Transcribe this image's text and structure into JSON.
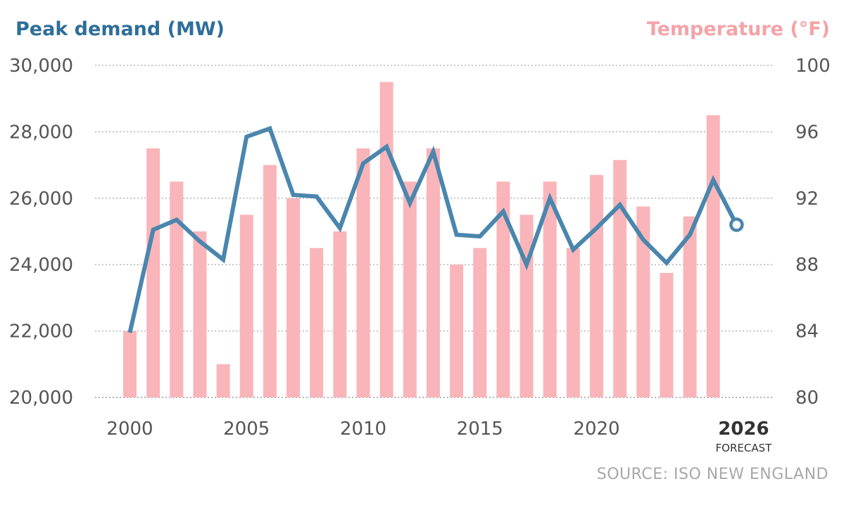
{
  "titles": {
    "left": "Peak demand (MW)",
    "right": "Temperature (°F)"
  },
  "source": "SOURCE: ISO NEW ENGLAND",
  "chart_data": {
    "type": "bar",
    "x": [
      2000,
      2001,
      2002,
      2003,
      2004,
      2005,
      2006,
      2007,
      2008,
      2009,
      2010,
      2011,
      2012,
      2013,
      2014,
      2015,
      2016,
      2017,
      2018,
      2019,
      2020,
      2021,
      2022,
      2023,
      2024,
      2025,
      2026
    ],
    "series": [
      {
        "name": "Temperature (°F)",
        "type": "bar",
        "axis": "right",
        "color": "#f9b5b9",
        "values": [
          84,
          95,
          93,
          90,
          82,
          91,
          94,
          92,
          89,
          90,
          95,
          99,
          93,
          95,
          88,
          89,
          93,
          91,
          93,
          89,
          93.4,
          94.3,
          91.5,
          87.5,
          90.9,
          97,
          null
        ]
      },
      {
        "name": "Peak demand (MW)",
        "type": "line",
        "axis": "left",
        "color": "#4a86ad",
        "values": [
          21950,
          25050,
          25350,
          24700,
          24150,
          27850,
          28100,
          26100,
          26050,
          25100,
          27050,
          27550,
          25850,
          27400,
          24900,
          24850,
          25600,
          24000,
          26000,
          24450,
          25100,
          25800,
          24750,
          24050,
          24900,
          26550,
          25200
        ],
        "forecast_index": 26
      }
    ],
    "left_axis": {
      "ticks": [
        "20,000",
        "22,000",
        "24,000",
        "26,000",
        "28,000",
        "30,000"
      ],
      "range": [
        20000,
        30000
      ]
    },
    "right_axis": {
      "ticks": [
        "80",
        "84",
        "88",
        "92",
        "96",
        "100"
      ],
      "range": [
        80,
        100
      ]
    },
    "x_axis": {
      "ticks": [
        "2000",
        "2005",
        "2010",
        "2015",
        "2020",
        "2026"
      ],
      "tick_years": [
        2000,
        2005,
        2010,
        2015,
        2020,
        2026
      ],
      "highlight_label": "2026",
      "highlight_sublabel": "FORECAST"
    },
    "grid": true
  }
}
